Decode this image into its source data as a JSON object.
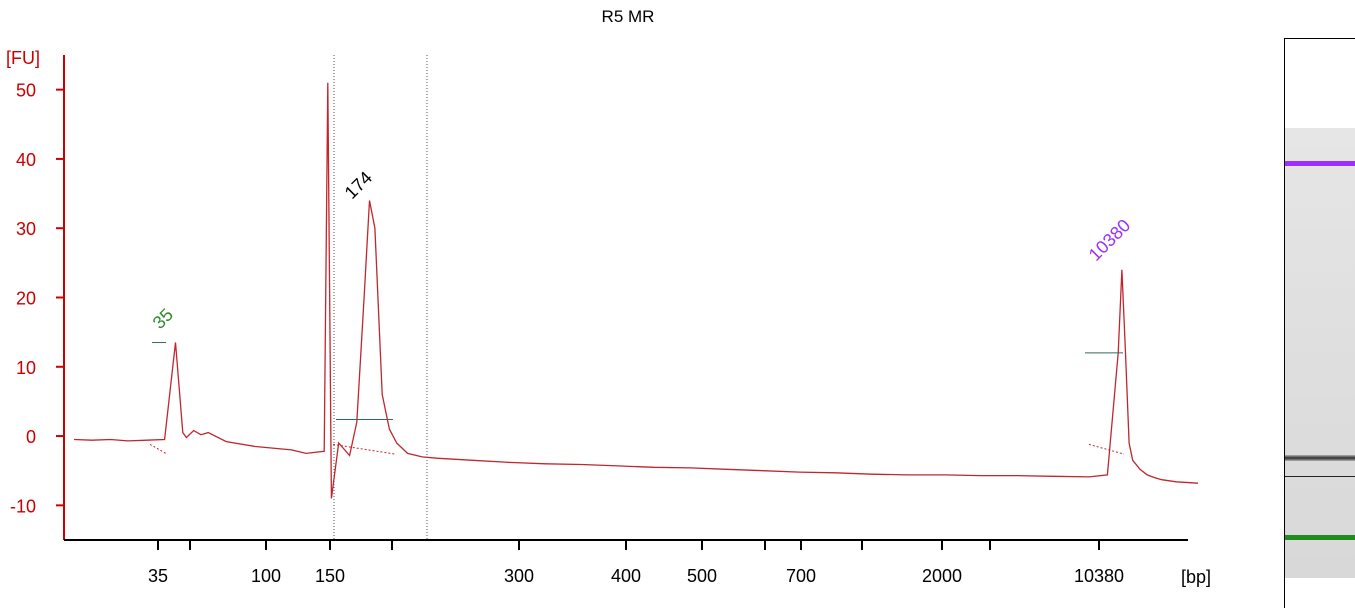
{
  "chart_data": {
    "type": "line",
    "title": "R5 MR",
    "ylabel": "[FU]",
    "xlabel": "[bp]",
    "ylim": [
      -15,
      55
    ],
    "y_ticks": [
      -10,
      0,
      10,
      20,
      30,
      40,
      50
    ],
    "x_tick_labels": [
      "35",
      "",
      "100",
      "150",
      "",
      "300",
      "400",
      "500",
      "",
      "700",
      "",
      "2000",
      "",
      "10380"
    ],
    "grid": false,
    "line_color": "#c0262d",
    "axis_color": "#cc0000",
    "peaks": [
      {
        "label": "35",
        "color": "#2e8b2e",
        "value": 13.5
      },
      {
        "label": "174",
        "color": "#000000",
        "value": 34
      },
      {
        "label": "10380",
        "color": "#9b30ff",
        "value": 24
      }
    ],
    "series": [
      {
        "x_tick_position": [
          0,
          0.5,
          1,
          1.5,
          2,
          2.5,
          2.8,
          3,
          3.1,
          3.3,
          3.5,
          3.7,
          4.2,
          5,
          6,
          6.4,
          6.9,
          7.0,
          7.1,
          7.3,
          7.6,
          7.8,
          8,
          8.15,
          8.3,
          8.5,
          8.7,
          8.9,
          9.2,
          9.6,
          10,
          11,
          12,
          13,
          14,
          15,
          16,
          17,
          18,
          19,
          20,
          21,
          22,
          23,
          24,
          25,
          26,
          27,
          28,
          28.5,
          28.8,
          28.9,
          29.0,
          29.1,
          29.2,
          29.4,
          29.6,
          29.8,
          30,
          30.4,
          31
        ],
        "values": [
          -0.5,
          -0.6,
          -0.5,
          -0.7,
          -0.6,
          -0.5,
          13.5,
          0.5,
          -0.2,
          0.8,
          0.2,
          0.5,
          -0.8,
          -1.5,
          -2,
          -2.5,
          -2.2,
          51,
          -9,
          -1,
          -2.8,
          2,
          20,
          34,
          30,
          6,
          1,
          -1,
          -2.5,
          -3,
          -3.2,
          -3.5,
          -3.8,
          -4,
          -4.1,
          -4.3,
          -4.5,
          -4.6,
          -4.8,
          -5,
          -5.2,
          -5.3,
          -5.5,
          -5.6,
          -5.6,
          -5.7,
          -5.7,
          -5.8,
          -5.9,
          -5.6,
          12,
          24,
          12,
          -1,
          -3.5,
          -4.8,
          -5.6,
          -6,
          -6.3,
          -6.6,
          -6.8
        ]
      }
    ],
    "markers": {
      "lower": "35",
      "upper": "10380"
    }
  },
  "gel": {
    "upper_color": "#9b30ff",
    "lower_color": "#1e8c1e"
  }
}
